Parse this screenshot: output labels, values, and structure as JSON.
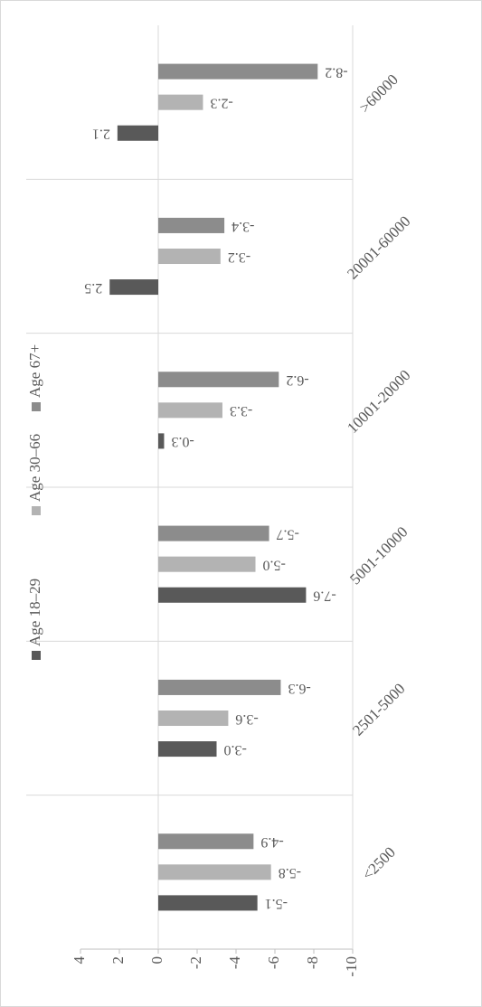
{
  "chart_data": {
    "type": "bar",
    "categories": [
      "<2500",
      "2501-5000",
      "5001-10000",
      "10001-20000",
      "20001-60000",
      ">60000"
    ],
    "series": [
      {
        "name": "Age 18–29",
        "color": "#595959",
        "values": [
          -5.1,
          -3.0,
          -7.6,
          -0.3,
          2.5,
          2.1
        ],
        "value_labels": [
          "-5.1",
          "-3.0",
          "-7.6",
          "-0.3",
          "2.5",
          "2.1"
        ]
      },
      {
        "name": "Age 30–66",
        "color": "#b3b3b3",
        "values": [
          -5.8,
          -3.6,
          -5.0,
          -3.3,
          -3.2,
          -2.3
        ],
        "value_labels": [
          "-5.8",
          "-3.6",
          "-5.0",
          "-3.3",
          "-3.2",
          "-2.3"
        ]
      },
      {
        "name": "Age 67+",
        "color": "#8c8c8c",
        "values": [
          -4.9,
          -6.3,
          -5.7,
          -6.2,
          -3.4,
          -8.2
        ],
        "value_labels": [
          "-4.9",
          "-6.3",
          "-5.7",
          "-6.2",
          "-3.4",
          "-8.2"
        ]
      }
    ],
    "ylim": [
      4,
      -10
    ],
    "yticks": [
      4,
      2,
      0,
      -2,
      -4,
      -6,
      -8,
      -10
    ],
    "legend": "top",
    "grid": false
  }
}
